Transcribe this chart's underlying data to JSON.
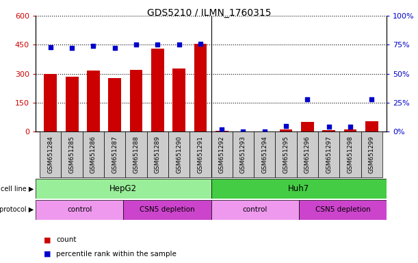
{
  "title": "GDS5210 / ILMN_1760315",
  "samples": [
    "GSM651284",
    "GSM651285",
    "GSM651286",
    "GSM651287",
    "GSM651288",
    "GSM651289",
    "GSM651290",
    "GSM651291",
    "GSM651292",
    "GSM651293",
    "GSM651294",
    "GSM651295",
    "GSM651296",
    "GSM651297",
    "GSM651298",
    "GSM651299"
  ],
  "counts": [
    300,
    285,
    315,
    278,
    318,
    430,
    328,
    455,
    3,
    0,
    0,
    10,
    50,
    8,
    10,
    55
  ],
  "percentile_ranks": [
    73,
    72,
    74,
    72,
    75,
    75,
    75,
    76,
    2,
    0,
    0,
    5,
    28,
    4,
    4,
    28
  ],
  "bar_color": "#cc0000",
  "dot_color": "#0000cc",
  "ylim_left": [
    0,
    600
  ],
  "ylim_right": [
    0,
    100
  ],
  "yticks_left": [
    0,
    150,
    300,
    450,
    600
  ],
  "yticks_right": [
    0,
    25,
    50,
    75,
    100
  ],
  "yticklabels_right": [
    "0%",
    "25%",
    "50%",
    "75%",
    "100%"
  ],
  "cell_line_groups": [
    {
      "label": "HepG2",
      "start": 0,
      "end": 8,
      "color": "#99ee99"
    },
    {
      "label": "Huh7",
      "start": 8,
      "end": 16,
      "color": "#44cc44"
    }
  ],
  "protocol_groups": [
    {
      "label": "control",
      "start": 0,
      "end": 4,
      "color": "#ee99ee"
    },
    {
      "label": "CSN5 depletion",
      "start": 4,
      "end": 8,
      "color": "#cc44cc"
    },
    {
      "label": "control",
      "start": 8,
      "end": 12,
      "color": "#ee99ee"
    },
    {
      "label": "CSN5 depletion",
      "start": 12,
      "end": 16,
      "color": "#cc44cc"
    }
  ],
  "legend_items": [
    {
      "label": "count",
      "color": "#cc0000"
    },
    {
      "label": "percentile rank within the sample",
      "color": "#0000cc"
    }
  ],
  "tick_label_color_left": "#cc0000",
  "tick_label_color_right": "#0000cc",
  "xlabel_bg": "#cccccc",
  "plot_bg": "#ffffff"
}
